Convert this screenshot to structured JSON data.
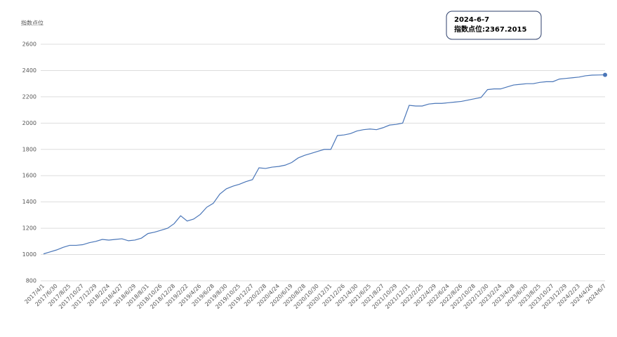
{
  "chart_data": {
    "type": "line",
    "y_label": "指数点位",
    "categories": [
      "2017/4/1",
      null,
      "2017/6/30",
      null,
      "2017/8/25",
      null,
      "2017/10/27",
      null,
      "2017/12/29",
      null,
      "2018/2/24",
      null,
      "2018/4/27",
      null,
      "2018/6/29",
      null,
      "2018/8/31",
      null,
      "2018/10/26",
      null,
      "2018/12/28",
      null,
      "2019/2/22",
      null,
      "2019/4/26",
      null,
      "2019/6/28",
      null,
      "2019/8/30",
      null,
      "2019/10/25",
      null,
      "2019/12/27",
      null,
      "2020/2/28",
      null,
      "2020/4/24",
      null,
      "2020/6/19",
      null,
      "2020/8/28",
      null,
      "2020/10/30",
      null,
      "2020/12/31",
      null,
      "2021/2/26",
      null,
      "2021/4/30",
      null,
      "2021/6/25",
      null,
      "2021/8/27",
      null,
      "2021/10/29",
      null,
      "2021/12/31",
      null,
      "2022/2/25",
      null,
      "2022/4/29",
      null,
      "2022/6/24",
      null,
      "2022/8/26",
      null,
      "2022/10/28",
      null,
      "2022/12/30",
      null,
      "2023/2/24",
      null,
      "2023/4/28",
      null,
      "2023/6/30",
      null,
      "2023/8/25",
      null,
      "2023/10/27",
      null,
      "2023/12/29",
      null,
      "2024/2/23",
      null,
      "2024/4/26",
      null,
      "2024/6/7"
    ],
    "series": [
      {
        "name": "指数点位",
        "color": "#4a76b8",
        "values": [
          1005,
          1020,
          1035,
          1055,
          1070,
          1070,
          1075,
          1090,
          1100,
          1115,
          1110,
          1115,
          1120,
          1105,
          1110,
          1125,
          1160,
          1170,
          1185,
          1200,
          1235,
          1295,
          1255,
          1270,
          1305,
          1360,
          1390,
          1460,
          1500,
          1520,
          1535,
          1555,
          1570,
          1660,
          1655,
          1665,
          1670,
          1680,
          1700,
          1735,
          1755,
          1770,
          1785,
          1800,
          1800,
          1905,
          1910,
          1920,
          1940,
          1950,
          1955,
          1950,
          1965,
          1985,
          1990,
          2000,
          2135,
          2130,
          2130,
          2145,
          2150,
          2150,
          2155,
          2160,
          2165,
          2175,
          2185,
          2195,
          2255,
          2260,
          2260,
          2275,
          2290,
          2295,
          2300,
          2300,
          2310,
          2315,
          2315,
          2335,
          2340,
          2345,
          2350,
          2360,
          2365,
          2366,
          2367.2015
        ]
      }
    ],
    "ylim": [
      800,
      2600
    ],
    "yticks": [
      800,
      1000,
      1200,
      1400,
      1600,
      1800,
      2000,
      2200,
      2400,
      2600
    ],
    "grid": true,
    "tooltip": {
      "title": "2024-6-7",
      "text": "指数点位:2367.2015"
    }
  }
}
